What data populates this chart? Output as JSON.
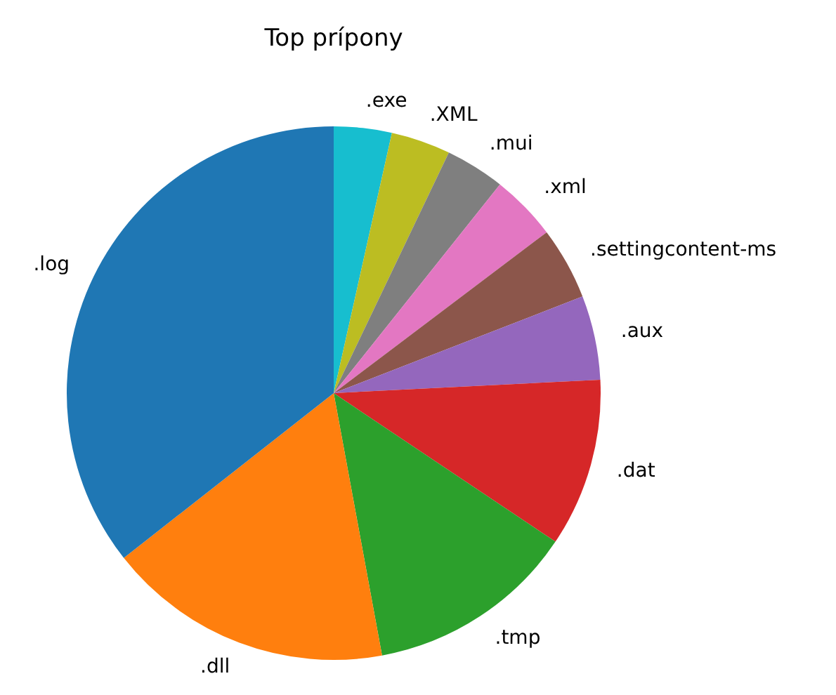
{
  "chart_data": {
    "type": "pie",
    "title": "Top prípony",
    "categories": [
      ".log",
      ".dll",
      ".tmp",
      ".dat",
      ".aux",
      ".settingcontent-ms",
      ".xml",
      ".mui",
      ".XML",
      ".exe"
    ],
    "values": [
      35.6,
      17.3,
      12.7,
      10.2,
      5.1,
      4.4,
      4.0,
      3.6,
      3.6,
      3.5
    ],
    "colors": [
      "#1f77b4",
      "#ff7f0e",
      "#2ca02c",
      "#d62728",
      "#9467bd",
      "#8c564b",
      "#e377c2",
      "#7f7f7f",
      "#bcbd22",
      "#17becf"
    ],
    "legend": false
  }
}
